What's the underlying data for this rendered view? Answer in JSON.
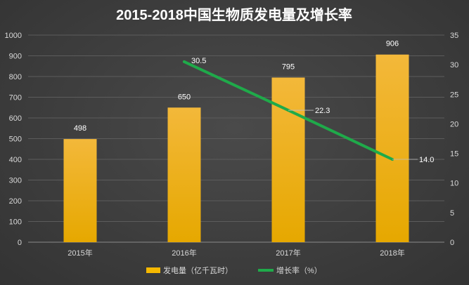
{
  "chart_data": {
    "type": "bar+line",
    "title": "2015-2018中国生物质发电量及增长率",
    "categories": [
      "2015年",
      "2016年",
      "2017年",
      "2018年"
    ],
    "series": [
      {
        "name": "发电量（亿千瓦时）",
        "type": "bar",
        "axis": "left",
        "values": [
          498,
          650,
          795,
          906
        ],
        "labels": [
          "498",
          "650",
          "795",
          "906"
        ]
      },
      {
        "name": "增长率（%）",
        "type": "line",
        "axis": "right",
        "values": [
          null,
          30.5,
          22.3,
          14.0
        ],
        "labels": [
          "",
          "30.5",
          "22.3",
          "14.0"
        ]
      }
    ],
    "y_left": {
      "min": 0,
      "max": 1000,
      "step": 100,
      "ticks": [
        "0",
        "100",
        "200",
        "300",
        "400",
        "500",
        "600",
        "700",
        "800",
        "900",
        "1000"
      ]
    },
    "y_right": {
      "min": 0,
      "max": 35,
      "step": 5,
      "ticks": [
        "0",
        "5",
        "10",
        "15",
        "20",
        "25",
        "30",
        "35"
      ]
    },
    "grid": true,
    "legend_position": "bottom",
    "colors": {
      "bar": "#F5B800",
      "bar_light": "#F7C84A",
      "line": "#1FAA4A",
      "grid": "#5c5c5c"
    }
  }
}
